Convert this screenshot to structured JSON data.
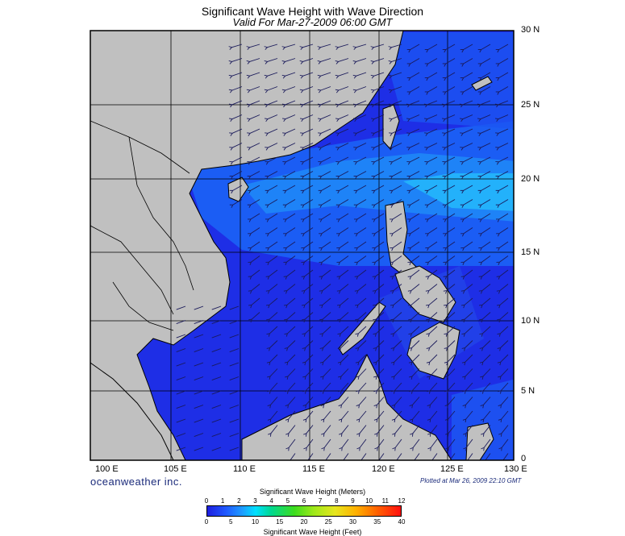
{
  "title": "Significant Wave Height with Wave Direction",
  "subtitle": "Valid For Mar-27-2009 06:00 GMT",
  "lat_labels": [
    "30 N",
    "25 N",
    "20 N",
    "15 N",
    "10 N",
    "5 N",
    "0"
  ],
  "lon_labels": [
    "100 E",
    "105 E",
    "110 E",
    "115 E",
    "120 E",
    "125 E",
    "130 E"
  ],
  "branding": "oceanweather inc.",
  "plotted": "Plotted at Mar 26, 2009 22:10 GMT",
  "colorbar": {
    "title_meters": "Significant Wave Height (Meters)",
    "ticks_meters": [
      "0",
      "1",
      "2",
      "3",
      "4",
      "5",
      "6",
      "7",
      "8",
      "9",
      "10",
      "11",
      "12"
    ],
    "ticks_feet": [
      "0",
      "5",
      "10",
      "15",
      "20",
      "25",
      "30",
      "35",
      "40"
    ],
    "title_feet": "Significant Wave Height (Feet)"
  },
  "colors": {
    "land": "#c0c0c0",
    "sea_low": "#1e28e6",
    "sea_mid": "#1a7cf5",
    "sea_high": "#1fc8ff",
    "arrows": "#1a1a5a"
  }
}
